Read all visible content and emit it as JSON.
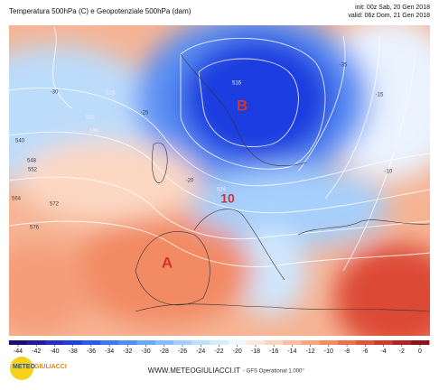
{
  "header": {
    "title": "Temperatura 500hPa (C) e Geopotenziale 500hPa (dam)",
    "init": "init: 00z Sab, 20 Gen 2018",
    "valid": "valid: 06z Dom, 21 Gen 2018"
  },
  "map": {
    "labels": [
      "B",
      "A",
      "10"
    ],
    "contour_labels": [
      "540",
      "548",
      "552",
      "564",
      "572",
      "576",
      "528",
      "532",
      "536",
      "524",
      "516",
      "-30",
      "-25",
      "-20",
      "-15",
      "-10",
      "-35"
    ]
  },
  "colorbar": {
    "ticks": [
      -44,
      -42,
      -40,
      -38,
      -36,
      -34,
      -32,
      -30,
      -28,
      -26,
      -24,
      -22,
      -20,
      -18,
      -16,
      -14,
      -12,
      -10,
      -8,
      -6,
      -4,
      -2,
      0
    ],
    "colors": [
      "#1a0f6e",
      "#1f1aa0",
      "#2030c8",
      "#1e40e0",
      "#2a5af0",
      "#3a78f5",
      "#5090f5",
      "#6aa8f8",
      "#85bdfa",
      "#a0cffc",
      "#bcdffd",
      "#d6ebfe",
      "#eef6ff",
      "#fde9dc",
      "#fcd5bf",
      "#fbbf9f",
      "#f9a67f",
      "#f58b62",
      "#ef6f48",
      "#e4523a",
      "#d03a2d",
      "#b42424",
      "#8c1414"
    ]
  },
  "footer": {
    "logo_1": "METEO",
    "logo_2": "GIULIACCI",
    "site": "WWW.METEOGIULIACCI.IT",
    "model": "- GFS Operational 1.000°"
  }
}
